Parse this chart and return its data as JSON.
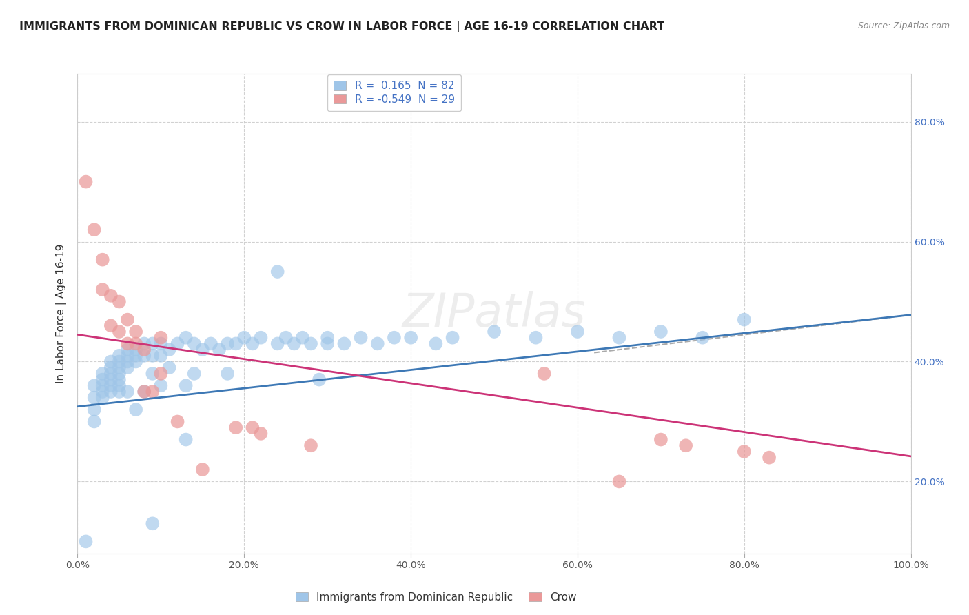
{
  "title": "IMMIGRANTS FROM DOMINICAN REPUBLIC VS CROW IN LABOR FORCE | AGE 16-19 CORRELATION CHART",
  "source": "Source: ZipAtlas.com",
  "ylabel": "In Labor Force | Age 16-19",
  "xlim": [
    0.0,
    1.0
  ],
  "ylim": [
    0.08,
    0.88
  ],
  "x_tick_vals": [
    0.0,
    0.2,
    0.4,
    0.6,
    0.8,
    1.0
  ],
  "x_tick_labels": [
    "0.0%",
    "20.0%",
    "40.0%",
    "60.0%",
    "80.0%",
    "100.0%"
  ],
  "y_tick_vals": [
    0.2,
    0.4,
    0.6,
    0.8
  ],
  "y_tick_labels": [
    "20.0%",
    "40.0%",
    "60.0%",
    "80.0%"
  ],
  "legend_label_blue": "R =  0.165  N = 82",
  "legend_label_pink": "R = -0.549  N = 29",
  "blue_color": "#9fc5e8",
  "pink_color": "#ea9999",
  "blue_line_color": "#3d78b5",
  "pink_line_color": "#cc3377",
  "dashed_line_color": "#aaaaaa",
  "watermark": "ZIPatlas",
  "background_color": "#ffffff",
  "grid_color": "#cccccc",
  "tick_color": "#4472c4",
  "title_color": "#222222",
  "source_color": "#888888",
  "blue_line_start_y": 0.325,
  "blue_line_end_y": 0.478,
  "pink_line_start_y": 0.445,
  "pink_line_end_y": 0.242,
  "dashed_line_start_x": 0.62,
  "dashed_line_start_y": 0.415,
  "dashed_line_end_x": 1.0,
  "dashed_line_end_y": 0.478,
  "blue_x": [
    0.01,
    0.02,
    0.02,
    0.02,
    0.02,
    0.03,
    0.03,
    0.03,
    0.03,
    0.03,
    0.04,
    0.04,
    0.04,
    0.04,
    0.04,
    0.04,
    0.05,
    0.05,
    0.05,
    0.05,
    0.05,
    0.05,
    0.05,
    0.06,
    0.06,
    0.06,
    0.06,
    0.06,
    0.07,
    0.07,
    0.07,
    0.07,
    0.08,
    0.08,
    0.08,
    0.09,
    0.09,
    0.09,
    0.1,
    0.1,
    0.1,
    0.11,
    0.11,
    0.12,
    0.13,
    0.13,
    0.14,
    0.14,
    0.15,
    0.16,
    0.17,
    0.18,
    0.18,
    0.19,
    0.2,
    0.21,
    0.22,
    0.24,
    0.24,
    0.25,
    0.26,
    0.27,
    0.28,
    0.29,
    0.3,
    0.3,
    0.32,
    0.34,
    0.36,
    0.38,
    0.4,
    0.43,
    0.45,
    0.5,
    0.55,
    0.6,
    0.65,
    0.7,
    0.75,
    0.8,
    0.09,
    0.13
  ],
  "blue_y": [
    0.1,
    0.36,
    0.34,
    0.32,
    0.3,
    0.38,
    0.37,
    0.36,
    0.35,
    0.34,
    0.4,
    0.39,
    0.38,
    0.37,
    0.36,
    0.35,
    0.41,
    0.4,
    0.39,
    0.38,
    0.37,
    0.36,
    0.35,
    0.42,
    0.41,
    0.4,
    0.39,
    0.35,
    0.42,
    0.41,
    0.4,
    0.32,
    0.43,
    0.41,
    0.35,
    0.43,
    0.41,
    0.38,
    0.43,
    0.41,
    0.36,
    0.42,
    0.39,
    0.43,
    0.44,
    0.36,
    0.43,
    0.38,
    0.42,
    0.43,
    0.42,
    0.43,
    0.38,
    0.43,
    0.44,
    0.43,
    0.44,
    0.55,
    0.43,
    0.44,
    0.43,
    0.44,
    0.43,
    0.37,
    0.44,
    0.43,
    0.43,
    0.44,
    0.43,
    0.44,
    0.44,
    0.43,
    0.44,
    0.45,
    0.44,
    0.45,
    0.44,
    0.45,
    0.44,
    0.47,
    0.13,
    0.27
  ],
  "pink_x": [
    0.01,
    0.02,
    0.03,
    0.03,
    0.04,
    0.04,
    0.05,
    0.05,
    0.06,
    0.06,
    0.07,
    0.07,
    0.08,
    0.08,
    0.09,
    0.1,
    0.1,
    0.12,
    0.15,
    0.19,
    0.21,
    0.22,
    0.28,
    0.56,
    0.65,
    0.7,
    0.73,
    0.8,
    0.83
  ],
  "pink_y": [
    0.7,
    0.62,
    0.57,
    0.52,
    0.51,
    0.46,
    0.5,
    0.45,
    0.47,
    0.43,
    0.45,
    0.43,
    0.42,
    0.35,
    0.35,
    0.44,
    0.38,
    0.3,
    0.22,
    0.29,
    0.29,
    0.28,
    0.26,
    0.38,
    0.2,
    0.27,
    0.26,
    0.25,
    0.24
  ],
  "title_fontsize": 11.5,
  "axis_label_fontsize": 11,
  "tick_fontsize": 10,
  "legend_fontsize": 11,
  "source_fontsize": 9
}
